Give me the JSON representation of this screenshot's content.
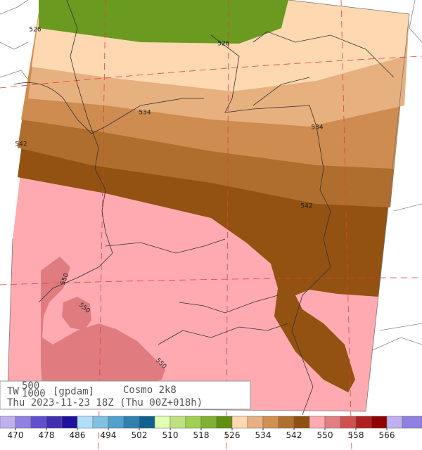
{
  "title": {
    "variable": "TW",
    "upper_level": "500",
    "lower_level": "1000",
    "unit": "[gpdam]",
    "model": "Cosmo 2k8",
    "valid_time": "Thu 2023-11-23 18Z (Thu 00Z+018h)"
  },
  "contour_labels": [
    "526",
    "526",
    "534",
    "534",
    "542",
    "542",
    "550",
    "550",
    "550"
  ],
  "colorbar": {
    "ticks": [
      470,
      478,
      486,
      494,
      502,
      510,
      518,
      526,
      534,
      542,
      550,
      558,
      566
    ],
    "colors": [
      "#c0b0f0",
      "#9080e0",
      "#6050d0",
      "#4030b0",
      "#2010a0",
      "#b0e0f8",
      "#80c0e0",
      "#50a0d0",
      "#3080b0",
      "#106090",
      "#e0ffb0",
      "#c0e080",
      "#a0d050",
      "#80b030",
      "#609010",
      "#ffd8b0",
      "#e8b080",
      "#d09050",
      "#b07030",
      "#905010",
      "#ffaab0",
      "#e08080",
      "#d05050",
      "#b02020",
      "#900000",
      "#c0b0f0",
      "#9080e0"
    ]
  }
}
